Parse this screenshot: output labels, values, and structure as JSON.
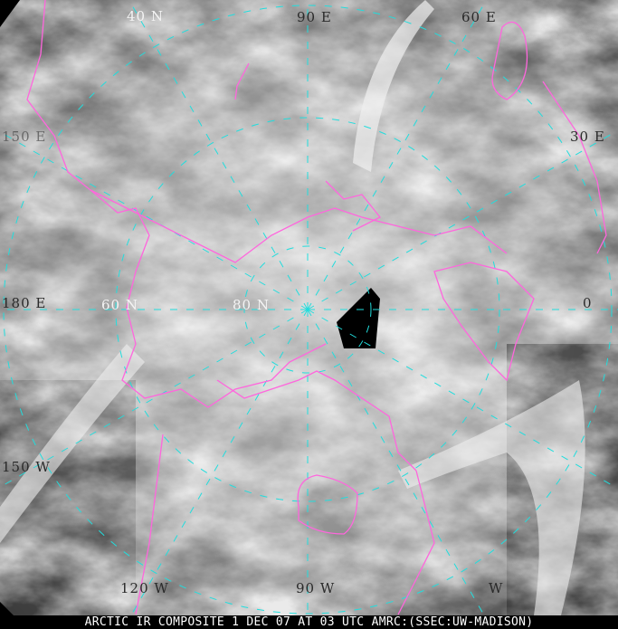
{
  "caption": "ARCTIC IR COMPOSITE 1 DEC 07 AT 03 UTC AMRC:(SSEC:UW-MADISON)",
  "graticule_labels": {
    "lat_40": "40 N",
    "lat_60": "60 N",
    "lat_80": "80 N",
    "lon_90e": "90 E",
    "lon_60e": "60 E",
    "lon_30e": "30 E",
    "lon_0": "0",
    "lon_150e": "150 E",
    "lon_180": "180 E",
    "lon_150w": "150 W",
    "lon_120w": "120 W",
    "lon_90w": "90 W",
    "lon_w": "W"
  },
  "colors": {
    "coastline": "#ff66dd",
    "graticule": "#22dddd",
    "background": "#000000"
  }
}
